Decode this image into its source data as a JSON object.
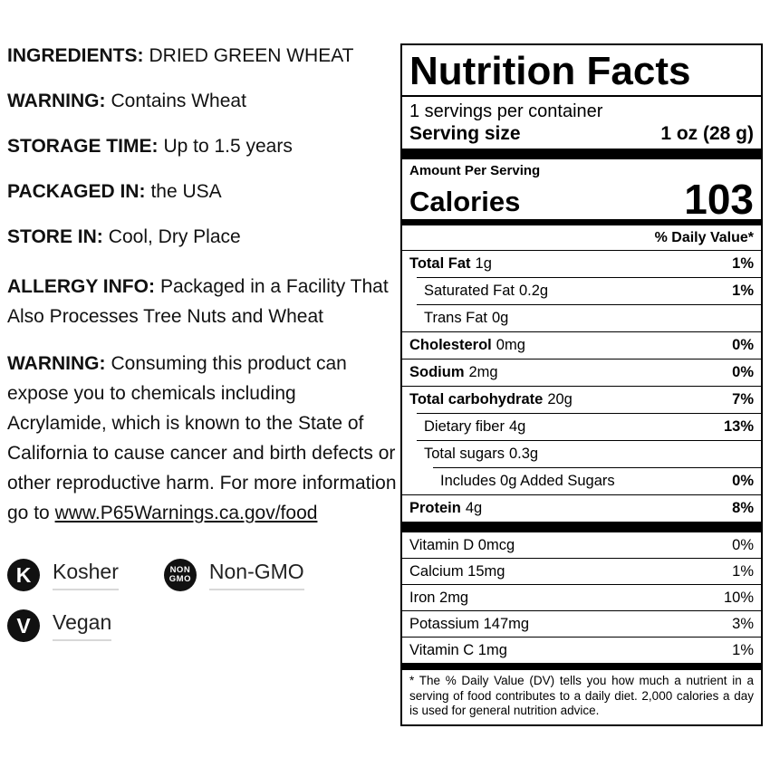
{
  "colors": {
    "ink": "#000000",
    "badge_bg": "#111111",
    "badge_underline": "#d8d8d8"
  },
  "left": {
    "info": [
      {
        "label": "INGREDIENTS:",
        "value": "DRIED GREEN WHEAT"
      },
      {
        "label": "WARNING:",
        "value": "Contains Wheat"
      },
      {
        "label": "STORAGE TIME:",
        "value": "Up to 1.5 years"
      },
      {
        "label": "PACKAGED IN:",
        "value": "the USA"
      },
      {
        "label": "STORE IN:",
        "value": "Cool, Dry Place"
      }
    ],
    "allergy": {
      "label": "ALLERGY INFO:",
      "value": "Packaged in a Facility That Also Processes Tree Nuts and Wheat"
    },
    "prop65": {
      "label": "WARNING:",
      "value": "Consuming this product can expose you to chemicals including Acrylamide, which is known to the State of California to cause cancer and birth defects or other reproductive harm. For more information go to",
      "link": "www.P65Warnings.ca.gov/food"
    },
    "badges": [
      {
        "icon_text": "K",
        "label": "Kosher"
      },
      {
        "icon_line1": "NON",
        "icon_line2": "GMO",
        "label": "Non-GMO"
      },
      {
        "icon_text": "V",
        "label": "Vegan"
      }
    ]
  },
  "nutrition": {
    "title": "Nutrition Facts",
    "servings_per_container": "1 servings per container",
    "serving_size_label": "Serving size",
    "serving_size_value": "1 oz (28 g)",
    "amount_per_serving": "Amount Per Serving",
    "calories_label": "Calories",
    "calories_value": "103",
    "daily_value_header": "% Daily Value*",
    "rows": [
      {
        "name": "Total Fat",
        "amount": "1g",
        "dv": "1%"
      },
      {
        "name": "Saturated Fat",
        "amount": "0.2g",
        "dv": "1%"
      },
      {
        "name": "Trans Fat",
        "amount": "0g",
        "dv": ""
      },
      {
        "name": "Cholesterol",
        "amount": "0mg",
        "dv": "0%"
      },
      {
        "name": "Sodium",
        "amount": "2mg",
        "dv": "0%"
      },
      {
        "name": "Total carbohydrate",
        "amount": "20g",
        "dv": "7%"
      },
      {
        "name": "Dietary fiber",
        "amount": "4g",
        "dv": "13%"
      },
      {
        "name": "Total sugars",
        "amount": "0.3g",
        "dv": ""
      },
      {
        "name": "Includes 0g Added Sugars",
        "amount": "",
        "dv": "0%"
      },
      {
        "name": "Protein",
        "amount": "4g",
        "dv": "8%"
      }
    ],
    "micronutrients": [
      {
        "name": "Vitamin D 0mcg",
        "dv": "0%"
      },
      {
        "name": "Calcium 15mg",
        "dv": "1%"
      },
      {
        "name": "Iron 2mg",
        "dv": "10%"
      },
      {
        "name": "Potassium 147mg",
        "dv": "3%"
      },
      {
        "name": "Vitamin C 1mg",
        "dv": "1%"
      }
    ],
    "footnote": "* The % Daily Value (DV) tells you how much a nutrient in a serving of food contributes to a daily diet. 2,000 calories a day is used for general nutrition advice."
  }
}
